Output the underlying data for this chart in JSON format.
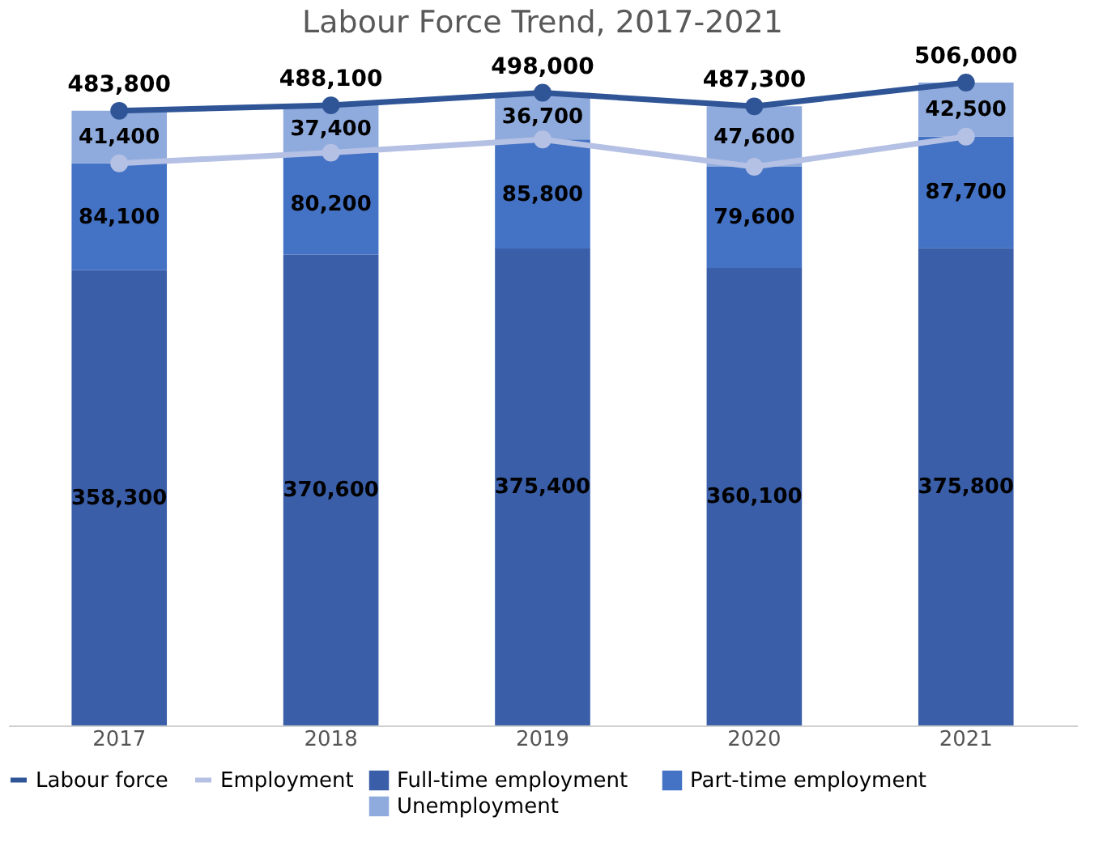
{
  "chart_data": {
    "type": "bar",
    "stacked": true,
    "title": "Labour Force Trend, 2017-2021",
    "categories": [
      "2017",
      "2018",
      "2019",
      "2020",
      "2021"
    ],
    "tick_labels": "x",
    "grid": false,
    "legend": "bottom",
    "marker": "circle",
    "series": [
      {
        "name": "Full-time employment",
        "color": "#3a5ea8",
        "values": [
          358300,
          370600,
          375400,
          360100,
          375800
        ],
        "value_labels": [
          "358,300",
          "370,600",
          "375,400",
          "360,100",
          "375,800"
        ]
      },
      {
        "name": "Part-time employment",
        "color": "#4472c4",
        "values": [
          84100,
          80200,
          85800,
          79600,
          87700
        ],
        "value_labels": [
          "84,100",
          "80,200",
          "85,800",
          "79,600",
          "87,700"
        ]
      },
      {
        "name": "Unemployment",
        "color": "#8faadc",
        "values": [
          41400,
          37400,
          36700,
          47600,
          42500
        ],
        "value_labels": [
          "41,400",
          "37,400",
          "36,700",
          "47,600",
          "42,500"
        ]
      },
      {
        "name": "Labour force",
        "type": "line",
        "color": "#2f5597",
        "values": [
          483800,
          488100,
          498000,
          487300,
          506000
        ],
        "value_labels": [
          "483,800",
          "488,100",
          "498,000",
          "487,300",
          "506,000"
        ]
      },
      {
        "name": "Employment",
        "type": "line",
        "color": "#b4c0e4",
        "values": [
          442400,
          450800,
          461200,
          439700,
          463500
        ]
      }
    ]
  }
}
